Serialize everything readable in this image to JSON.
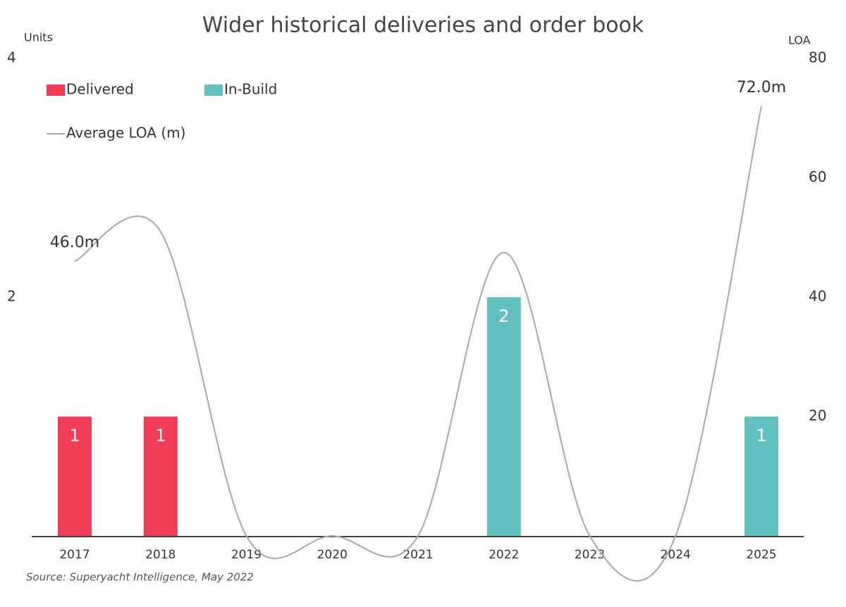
{
  "chart_data": {
    "type": "bar",
    "title": "Wider historical deliveries and order book",
    "y_label": "Units",
    "y2_label": "LOA",
    "source": "Source: Superyacht Intelligence, May 2022",
    "categories": [
      "2017",
      "2018",
      "2019",
      "2020",
      "2021",
      "2022",
      "2023",
      "2024",
      "2025"
    ],
    "series": [
      {
        "name": "Delivered",
        "color": "#f03c55",
        "values": [
          1,
          1,
          null,
          null,
          null,
          null,
          null,
          null,
          null
        ]
      },
      {
        "name": "In-Build",
        "color": "#62c1be",
        "values": [
          null,
          null,
          null,
          null,
          null,
          2,
          null,
          null,
          1
        ]
      },
      {
        "name": "Average LOA (m)",
        "color": "#a8a8a8",
        "type": "line",
        "axis": "y2",
        "values": [
          46.0,
          51,
          0,
          0,
          0,
          47.5,
          0,
          0,
          72.0
        ],
        "value_labels": [
          "46.0m",
          null,
          null,
          null,
          null,
          null,
          null,
          null,
          "72.0m"
        ]
      }
    ],
    "ylim": [
      0,
      4
    ],
    "yticks": [
      2,
      4
    ],
    "y2lim": [
      0,
      80
    ],
    "y2ticks": [
      20,
      40,
      60,
      80
    ]
  }
}
